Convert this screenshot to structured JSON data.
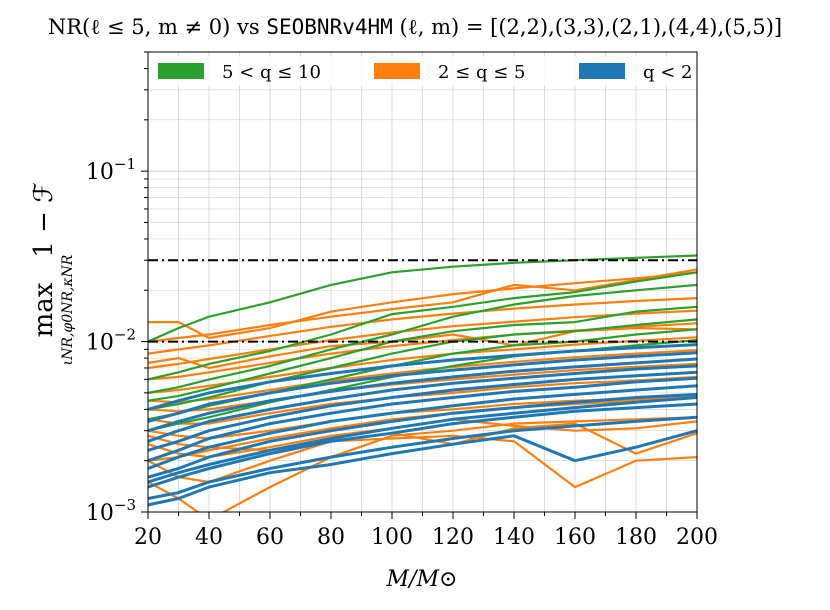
{
  "chart_data": {
    "type": "line",
    "title_prefix": "NR(ℓ ≤ 5, m ≠ 0) vs ",
    "title_model": "SEOBNRv4HM",
    "title_suffix": " (ℓ, m) = [(2,2),(3,3),(2,1),(4,4),(5,5)]",
    "xlabel": "M/M⊙",
    "ylabel_main": "1 − ℱ",
    "ylabel_max": "max",
    "ylabel_sub": "ιNR,φ0NR,κNR",
    "xlim": [
      20,
      200
    ],
    "ylim": [
      0.001,
      0.5
    ],
    "yscale": "log",
    "grid": true,
    "x_ticks": [
      20,
      40,
      60,
      80,
      100,
      120,
      140,
      160,
      180,
      200
    ],
    "x_tick_labels": [
      "20",
      "40",
      "60",
      "80",
      "100",
      "120",
      "140",
      "160",
      "180",
      "200"
    ],
    "y_ticks": [
      {
        "value": 0.001,
        "base": "10",
        "exp": "−3"
      },
      {
        "value": 0.01,
        "base": "10",
        "exp": "−2"
      },
      {
        "value": 0.1,
        "base": "10",
        "exp": "−1"
      }
    ],
    "reference_lines": [
      0.01,
      0.03
    ],
    "legend": [
      {
        "label": "5 < q ≤ 10",
        "color": "#2ca02c"
      },
      {
        "label": "2 ≤ q ≤ 5",
        "color": "#ff7f0e"
      },
      {
        "label": "q < 2",
        "color": "#1f77b4"
      }
    ],
    "legend_position": "top",
    "x": [
      20,
      30,
      40,
      60,
      80,
      100,
      120,
      140,
      160,
      180,
      200
    ],
    "series": [
      {
        "name": "2 ≤ q ≤ 5",
        "color": "#ff7f0e",
        "values": [
          0.0015,
          0.0012,
          0.0009,
          0.0014,
          0.0021,
          0.0028,
          0.003,
          0.0033,
          0.0034,
          0.0035,
          0.0036
        ]
      },
      {
        "name": "2 ≤ q ≤ 5",
        "color": "#ff7f0e",
        "values": [
          0.002,
          0.0016,
          0.0015,
          0.002,
          0.0026,
          0.0027,
          0.0028,
          0.0026,
          0.0014,
          0.002,
          0.0021
        ]
      },
      {
        "name": "2 ≤ q ≤ 5",
        "color": "#ff7f0e",
        "values": [
          0.0025,
          0.0022,
          0.0021,
          0.0024,
          0.0028,
          0.0031,
          0.0035,
          0.0032,
          0.003,
          0.0031,
          0.0034
        ]
      },
      {
        "name": "2 ≤ q ≤ 5",
        "color": "#ff7f0e",
        "values": [
          0.003,
          0.0028,
          0.0027,
          0.003,
          0.0034,
          0.0038,
          0.004,
          0.0043,
          0.0045,
          0.0046,
          0.0048
        ]
      },
      {
        "name": "2 ≤ q ≤ 5",
        "color": "#ff7f0e",
        "values": [
          0.0035,
          0.0033,
          0.0033,
          0.0038,
          0.0043,
          0.0047,
          0.005,
          0.0054,
          0.0057,
          0.0059,
          0.0062
        ]
      },
      {
        "name": "2 ≤ q ≤ 5",
        "color": "#ff7f0e",
        "values": [
          0.004,
          0.0039,
          0.004,
          0.0045,
          0.0051,
          0.0056,
          0.006,
          0.0064,
          0.0068,
          0.0071,
          0.0074
        ]
      },
      {
        "name": "2 ≤ q ≤ 5",
        "color": "#ff7f0e",
        "values": [
          0.0045,
          0.0044,
          0.0046,
          0.0052,
          0.0059,
          0.0065,
          0.0071,
          0.0076,
          0.0081,
          0.0085,
          0.0089
        ]
      },
      {
        "name": "2 ≤ q ≤ 5",
        "color": "#ff7f0e",
        "values": [
          0.005,
          0.0052,
          0.0055,
          0.0062,
          0.007,
          0.0078,
          0.0085,
          0.009,
          0.0096,
          0.0101,
          0.0106
        ]
      },
      {
        "name": "2 ≤ q ≤ 5",
        "color": "#ff7f0e",
        "values": [
          0.006,
          0.0062,
          0.0066,
          0.0075,
          0.0085,
          0.0094,
          0.0102,
          0.011,
          0.0116,
          0.0122,
          0.0128
        ]
      },
      {
        "name": "2 ≤ q ≤ 5",
        "color": "#ff7f0e",
        "values": [
          0.007,
          0.0074,
          0.0079,
          0.009,
          0.0102,
          0.0113,
          0.0123,
          0.0131,
          0.0139,
          0.0146,
          0.0152
        ]
      },
      {
        "name": "2 ≤ q ≤ 5",
        "color": "#ff7f0e",
        "values": [
          0.0085,
          0.009,
          0.0095,
          0.0108,
          0.0122,
          0.0135,
          0.0146,
          0.0156,
          0.0165,
          0.0173,
          0.018
        ]
      },
      {
        "name": "2 ≤ q ≤ 5",
        "color": "#ff7f0e",
        "values": [
          0.013,
          0.013,
          0.0105,
          0.012,
          0.015,
          0.017,
          0.019,
          0.0205,
          0.022,
          0.0235,
          0.0255
        ]
      },
      {
        "name": "2 ≤ q ≤ 5",
        "color": "#ff7f0e",
        "values": [
          0.01,
          0.0105,
          0.011,
          0.0125,
          0.014,
          0.0155,
          0.017,
          0.0215,
          0.02,
          0.023,
          0.0265
        ]
      },
      {
        "name": "2 ≤ q ≤ 5",
        "color": "#ff7f0e",
        "values": [
          0.002,
          0.0021,
          0.0023,
          0.0027,
          0.0031,
          0.0035,
          0.0038,
          0.0041,
          0.0043,
          0.0045,
          0.0047
        ]
      },
      {
        "name": "2 ≤ q ≤ 5",
        "color": "#ff7f0e",
        "values": [
          0.0028,
          0.0025,
          0.0024,
          0.0023,
          0.0026,
          0.0029,
          0.0025,
          0.0031,
          0.0033,
          0.0022,
          0.0029
        ]
      },
      {
        "name": "2 ≤ q ≤ 5",
        "color": "#ff7f0e",
        "values": [
          0.0075,
          0.008,
          0.007,
          0.0082,
          0.0094,
          0.01,
          0.011,
          0.0095,
          0.0115,
          0.012,
          0.0118
        ]
      },
      {
        "name": "5 < q ≤ 10",
        "color": "#2ca02c",
        "values": [
          0.01,
          0.012,
          0.014,
          0.017,
          0.0215,
          0.0255,
          0.0275,
          0.029,
          0.03,
          0.031,
          0.032
        ]
      },
      {
        "name": "5 < q ≤ 10",
        "color": "#2ca02c",
        "values": [
          0.006,
          0.0066,
          0.0074,
          0.0088,
          0.011,
          0.0145,
          0.016,
          0.018,
          0.0195,
          0.0225,
          0.0255
        ]
      },
      {
        "name": "5 < q ≤ 10",
        "color": "#2ca02c",
        "values": [
          0.005,
          0.0054,
          0.006,
          0.0072,
          0.009,
          0.011,
          0.014,
          0.0165,
          0.0185,
          0.02,
          0.0215
        ]
      },
      {
        "name": "5 < q ≤ 10",
        "color": "#2ca02c",
        "values": [
          0.0045,
          0.0048,
          0.0053,
          0.0065,
          0.008,
          0.01,
          0.0115,
          0.0125,
          0.013,
          0.015,
          0.016
        ]
      },
      {
        "name": "5 < q ≤ 10",
        "color": "#2ca02c",
        "values": [
          0.004,
          0.0043,
          0.0047,
          0.0058,
          0.007,
          0.0085,
          0.01,
          0.011,
          0.0115,
          0.0125,
          0.0135
        ]
      },
      {
        "name": "5 < q ≤ 10",
        "color": "#2ca02c",
        "values": [
          0.0035,
          0.0038,
          0.0042,
          0.005,
          0.006,
          0.0072,
          0.0085,
          0.0095,
          0.01,
          0.011,
          0.0118
        ]
      },
      {
        "name": "5 < q ≤ 10",
        "color": "#2ca02c",
        "values": [
          0.003,
          0.0033,
          0.0036,
          0.0044,
          0.0052,
          0.0062,
          0.0072,
          0.0082,
          0.0088,
          0.0095,
          0.0102
        ]
      },
      {
        "name": "q < 2",
        "color": "#1f77b4",
        "values": [
          0.0012,
          0.0013,
          0.0015,
          0.0018,
          0.0021,
          0.0024,
          0.0027,
          0.003,
          0.0032,
          0.0034,
          0.0036
        ]
      },
      {
        "name": "q < 2",
        "color": "#1f77b4",
        "values": [
          0.0014,
          0.0016,
          0.0018,
          0.0022,
          0.0026,
          0.0029,
          0.0033,
          0.0036,
          0.0039,
          0.0041,
          0.0043
        ]
      },
      {
        "name": "q < 2",
        "color": "#1f77b4",
        "values": [
          0.0016,
          0.0018,
          0.0021,
          0.0026,
          0.003,
          0.0034,
          0.0038,
          0.0041,
          0.0044,
          0.0047,
          0.0049
        ]
      },
      {
        "name": "q < 2",
        "color": "#1f77b4",
        "values": [
          0.0018,
          0.0021,
          0.0024,
          0.0029,
          0.0034,
          0.0038,
          0.0042,
          0.0046,
          0.0049,
          0.0052,
          0.0055
        ]
      },
      {
        "name": "q < 2",
        "color": "#1f77b4",
        "values": [
          0.002,
          0.0023,
          0.0027,
          0.0033,
          0.0038,
          0.0043,
          0.0047,
          0.0051,
          0.0054,
          0.0058,
          0.0061
        ]
      },
      {
        "name": "q < 2",
        "color": "#1f77b4",
        "values": [
          0.0023,
          0.0026,
          0.003,
          0.0036,
          0.0042,
          0.0047,
          0.0052,
          0.0056,
          0.006,
          0.0063,
          0.0066
        ]
      },
      {
        "name": "q < 2",
        "color": "#1f77b4",
        "values": [
          0.0026,
          0.003,
          0.0034,
          0.004,
          0.0046,
          0.0052,
          0.0057,
          0.0061,
          0.0065,
          0.0069,
          0.0072
        ]
      },
      {
        "name": "q < 2",
        "color": "#1f77b4",
        "values": [
          0.003,
          0.0034,
          0.0038,
          0.0045,
          0.0051,
          0.0057,
          0.0062,
          0.0067,
          0.0071,
          0.0075,
          0.0079
        ]
      },
      {
        "name": "q < 2",
        "color": "#1f77b4",
        "values": [
          0.0034,
          0.0038,
          0.0043,
          0.005,
          0.0057,
          0.0063,
          0.0068,
          0.0073,
          0.0078,
          0.0082,
          0.0086
        ]
      },
      {
        "name": "q < 2",
        "color": "#1f77b4",
        "values": [
          0.004,
          0.0045,
          0.005,
          0.0058,
          0.0065,
          0.0072,
          0.0078,
          0.0083,
          0.0088,
          0.0092,
          0.0096
        ]
      },
      {
        "name": "q < 2",
        "color": "#1f77b4",
        "values": [
          0.0011,
          0.0012,
          0.0014,
          0.0017,
          0.0019,
          0.0022,
          0.0025,
          0.0028,
          0.002,
          0.0024,
          0.003
        ]
      },
      {
        "name": "q < 2",
        "color": "#1f77b4",
        "values": [
          0.0015,
          0.0017,
          0.0019,
          0.0023,
          0.0027,
          0.0031,
          0.0035,
          0.0038,
          0.0041,
          0.0044,
          0.0047
        ]
      }
    ]
  }
}
